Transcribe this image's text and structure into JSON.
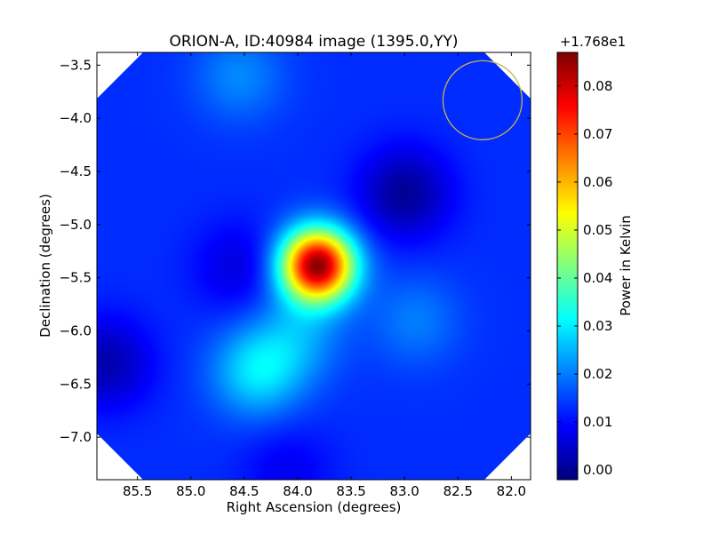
{
  "chart_data": {
    "type": "heatmap",
    "title": "ORION-A, ID:40984 image (1395.0,YY)",
    "xlabel": "Right Ascension (degrees)",
    "ylabel": "Declination (degrees)",
    "xlim": [
      85.88,
      81.82
    ],
    "ylim": [
      -7.4,
      -3.38
    ],
    "x_ticks": [
      {
        "value": 85.5,
        "label": "85.5"
      },
      {
        "value": 85.0,
        "label": "85.0"
      },
      {
        "value": 84.5,
        "label": "84.5"
      },
      {
        "value": 84.0,
        "label": "84.0"
      },
      {
        "value": 83.5,
        "label": "83.5"
      },
      {
        "value": 83.0,
        "label": "83.0"
      },
      {
        "value": 82.5,
        "label": "82.5"
      },
      {
        "value": 82.0,
        "label": "82.0"
      }
    ],
    "y_ticks": [
      {
        "value": -3.5,
        "label": "−3.5"
      },
      {
        "value": -4.0,
        "label": "−4.0"
      },
      {
        "value": -4.5,
        "label": "−4.5"
      },
      {
        "value": -5.0,
        "label": "−5.0"
      },
      {
        "value": -5.5,
        "label": "−5.5"
      },
      {
        "value": -6.0,
        "label": "−6.0"
      },
      {
        "value": -6.5,
        "label": "−6.5"
      },
      {
        "value": -7.0,
        "label": "−7.0"
      }
    ],
    "colorbar": {
      "label": "Power in Kelvin",
      "offset_label": "+1.768e1",
      "range": [
        -0.002,
        0.087
      ],
      "ticks": [
        {
          "value": 0.0,
          "label": "0.00"
        },
        {
          "value": 0.01,
          "label": "0.01"
        },
        {
          "value": 0.02,
          "label": "0.02"
        },
        {
          "value": 0.03,
          "label": "0.03"
        },
        {
          "value": 0.04,
          "label": "0.04"
        },
        {
          "value": 0.05,
          "label": "0.05"
        },
        {
          "value": 0.06,
          "label": "0.06"
        },
        {
          "value": 0.07,
          "label": "0.07"
        },
        {
          "value": 0.08,
          "label": "0.08"
        }
      ],
      "colormap": "jet"
    },
    "background_level": 0.013,
    "features": [
      {
        "kind": "peak",
        "ra": 83.82,
        "dec": -5.38,
        "value": 0.086
      },
      {
        "kind": "peak",
        "ra": 84.38,
        "dec": -6.38,
        "value": 0.029
      },
      {
        "kind": "peak",
        "ra": 84.0,
        "dec": -6.05,
        "value": 0.022
      },
      {
        "kind": "peak",
        "ra": 84.55,
        "dec": -3.6,
        "value": 0.021
      },
      {
        "kind": "peak",
        "ra": 82.9,
        "dec": -5.9,
        "value": 0.02
      },
      {
        "kind": "trough",
        "ra": 83.0,
        "dec": -4.7,
        "value": 0.0
      },
      {
        "kind": "trough",
        "ra": 85.8,
        "dec": -6.3,
        "value": 0.002
      },
      {
        "kind": "trough",
        "ra": 84.55,
        "dec": -5.4,
        "value": 0.006
      },
      {
        "kind": "trough",
        "ra": 84.1,
        "dec": -7.3,
        "value": 0.008
      }
    ],
    "beam": {
      "ra": 82.27,
      "dec": -3.83,
      "radius_deg": 0.37,
      "color": "#c8b444"
    },
    "blank_color": "#ffffff"
  }
}
